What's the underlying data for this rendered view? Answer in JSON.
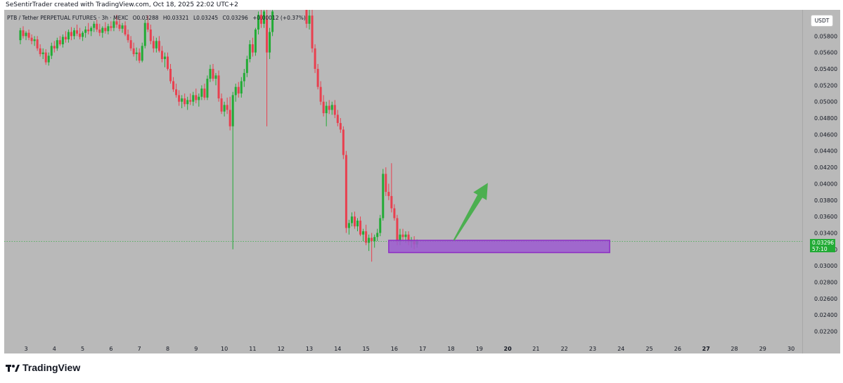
{
  "header": {
    "credit": "SeSentirTrader created with TradingView.com, Oct 18, 2025 22:02 UTC+2"
  },
  "legend": {
    "symbol": "PTB / Tether PERPETUAL FUTURES · 3h · MEXC",
    "open": "O0.03288",
    "high": "H0.03321",
    "low": "L0.03245",
    "close": "C0.03296",
    "change": "+0.00012 (+0.37%)"
  },
  "currency_label": "USDT",
  "last_price": {
    "price": "0.03296",
    "countdown": "57:10",
    "color": "#22ab35"
  },
  "footer": {
    "brand": "TradingView"
  },
  "colors": {
    "up": "#22ab35",
    "down": "#e8404f",
    "zone_fill": "#9b59d0",
    "zone_border": "#8e2fc4",
    "arrow": "#4caf50",
    "background": "#b9b9b9"
  },
  "chart_data": {
    "type": "candlestick",
    "symbol": "PTB/USDT",
    "timeframe": "3h",
    "y_ticks": [
      "0.05800",
      "0.05600",
      "0.05400",
      "0.05200",
      "0.05000",
      "0.04800",
      "0.04600",
      "0.04400",
      "0.04200",
      "0.04000",
      "0.03800",
      "0.03600",
      "0.03400",
      "0.03200",
      "0.03000",
      "0.02800",
      "0.02600",
      "0.02400",
      "0.02200"
    ],
    "x_ticks": [
      "3",
      "4",
      "5",
      "6",
      "7",
      "8",
      "9",
      "10",
      "11",
      "12",
      "13",
      "14",
      "15",
      "16",
      "17",
      "18",
      "19",
      "20",
      "21",
      "22",
      "23",
      "24",
      "25",
      "26",
      "27",
      "28",
      "29",
      "30"
    ],
    "ylim": [
      0.0205,
      0.0612
    ],
    "last_close": 0.03296,
    "support_zone": {
      "low": 0.0316,
      "high": 0.0331,
      "from_day": 15.8,
      "to_day": 23.6
    },
    "projection_arrow": {
      "from": [
        18.1,
        0.0331
      ],
      "to": [
        19.3,
        0.0401
      ]
    },
    "candles": [
      [
        2.8,
        0.0575,
        0.059,
        0.057,
        0.0587
      ],
      [
        2.9,
        0.0587,
        0.0592,
        0.0577,
        0.058
      ],
      [
        3.0,
        0.058,
        0.0586,
        0.0575,
        0.0584
      ],
      [
        3.1,
        0.0584,
        0.0588,
        0.0575,
        0.0578
      ],
      [
        3.2,
        0.0578,
        0.0582,
        0.057,
        0.0574
      ],
      [
        3.3,
        0.0574,
        0.058,
        0.0568,
        0.0576
      ],
      [
        3.4,
        0.0576,
        0.058,
        0.0562,
        0.0565
      ],
      [
        3.5,
        0.0565,
        0.057,
        0.0555,
        0.0558
      ],
      [
        3.6,
        0.0558,
        0.0565,
        0.0552,
        0.056
      ],
      [
        3.7,
        0.056,
        0.0564,
        0.0545,
        0.0548
      ],
      [
        3.8,
        0.0548,
        0.056,
        0.0544,
        0.0556
      ],
      [
        3.9,
        0.0556,
        0.0572,
        0.0552,
        0.0568
      ],
      [
        4.0,
        0.0568,
        0.0574,
        0.056,
        0.0565
      ],
      [
        4.1,
        0.0565,
        0.0578,
        0.0562,
        0.0575
      ],
      [
        4.2,
        0.0575,
        0.058,
        0.0568,
        0.057
      ],
      [
        4.3,
        0.057,
        0.0582,
        0.0566,
        0.0579
      ],
      [
        4.4,
        0.0579,
        0.0586,
        0.0572,
        0.0576
      ],
      [
        4.5,
        0.0576,
        0.0588,
        0.0572,
        0.0585
      ],
      [
        4.6,
        0.0585,
        0.0591,
        0.0575,
        0.058
      ],
      [
        4.7,
        0.058,
        0.059,
        0.0576,
        0.0587
      ],
      [
        4.8,
        0.0587,
        0.0594,
        0.058,
        0.0583
      ],
      [
        4.9,
        0.0583,
        0.059,
        0.0576,
        0.0579
      ],
      [
        5.0,
        0.0579,
        0.0586,
        0.0574,
        0.0584
      ],
      [
        5.1,
        0.0584,
        0.0592,
        0.0578,
        0.0588
      ],
      [
        5.2,
        0.0588,
        0.0596,
        0.0582,
        0.0586
      ],
      [
        5.3,
        0.0586,
        0.0592,
        0.058,
        0.059
      ],
      [
        5.4,
        0.059,
        0.0598,
        0.0585,
        0.0595
      ],
      [
        5.5,
        0.0595,
        0.06,
        0.0585,
        0.0588
      ],
      [
        5.6,
        0.0588,
        0.0595,
        0.058,
        0.0584
      ],
      [
        5.7,
        0.0584,
        0.0592,
        0.0578,
        0.059
      ],
      [
        5.8,
        0.059,
        0.0597,
        0.0583,
        0.0586
      ],
      [
        5.9,
        0.0586,
        0.0595,
        0.0582,
        0.0592
      ],
      [
        6.0,
        0.0592,
        0.0598,
        0.0586,
        0.059
      ],
      [
        6.1,
        0.059,
        0.0602,
        0.0586,
        0.0598
      ],
      [
        6.2,
        0.0598,
        0.0606,
        0.059,
        0.0594
      ],
      [
        6.3,
        0.0594,
        0.06,
        0.0586,
        0.0589
      ],
      [
        6.4,
        0.0589,
        0.0596,
        0.0584,
        0.0593
      ],
      [
        6.5,
        0.0593,
        0.0598,
        0.058,
        0.0582
      ],
      [
        6.6,
        0.0582,
        0.0588,
        0.0572,
        0.0575
      ],
      [
        6.7,
        0.0575,
        0.058,
        0.0562,
        0.0565
      ],
      [
        6.8,
        0.0565,
        0.0572,
        0.0555,
        0.0558
      ],
      [
        6.9,
        0.0558,
        0.0566,
        0.055,
        0.056
      ],
      [
        7.0,
        0.056,
        0.0565,
        0.0547,
        0.055
      ],
      [
        7.1,
        0.055,
        0.0572,
        0.0548,
        0.0568
      ],
      [
        7.2,
        0.0568,
        0.06,
        0.0565,
        0.0596
      ],
      [
        7.3,
        0.0596,
        0.0605,
        0.0585,
        0.0588
      ],
      [
        7.4,
        0.0588,
        0.0594,
        0.057,
        0.0574
      ],
      [
        7.5,
        0.0574,
        0.058,
        0.056,
        0.0565
      ],
      [
        7.6,
        0.0565,
        0.0578,
        0.056,
        0.0574
      ],
      [
        7.7,
        0.0574,
        0.058,
        0.056,
        0.0562
      ],
      [
        7.8,
        0.0562,
        0.0568,
        0.0548,
        0.0552
      ],
      [
        7.9,
        0.0552,
        0.056,
        0.0542,
        0.0555
      ],
      [
        8.0,
        0.0555,
        0.056,
        0.0538,
        0.054
      ],
      [
        8.1,
        0.054,
        0.0546,
        0.0522,
        0.0525
      ],
      [
        8.2,
        0.0525,
        0.053,
        0.0512,
        0.0515
      ],
      [
        8.3,
        0.0515,
        0.0522,
        0.0505,
        0.0508
      ],
      [
        8.4,
        0.0508,
        0.0514,
        0.0495,
        0.05
      ],
      [
        8.5,
        0.05,
        0.0508,
        0.0492,
        0.0504
      ],
      [
        8.6,
        0.0504,
        0.051,
        0.0494,
        0.0497
      ],
      [
        8.7,
        0.0497,
        0.0506,
        0.049,
        0.0502
      ],
      [
        8.8,
        0.0502,
        0.051,
        0.0496,
        0.05
      ],
      [
        8.9,
        0.05,
        0.0512,
        0.0495,
        0.0508
      ],
      [
        9.0,
        0.0508,
        0.0516,
        0.0498,
        0.0502
      ],
      [
        9.1,
        0.0502,
        0.051,
        0.0494,
        0.0506
      ],
      [
        9.2,
        0.0506,
        0.052,
        0.0502,
        0.0516
      ],
      [
        9.3,
        0.0516,
        0.0522,
        0.0502,
        0.0505
      ],
      [
        9.4,
        0.0505,
        0.0532,
        0.0502,
        0.0528
      ],
      [
        9.5,
        0.0528,
        0.0545,
        0.0524,
        0.054
      ],
      [
        9.6,
        0.054,
        0.0546,
        0.0525,
        0.0528
      ],
      [
        9.7,
        0.0528,
        0.0535,
        0.052,
        0.0532
      ],
      [
        9.8,
        0.0532,
        0.0538,
        0.05,
        0.0504
      ],
      [
        9.9,
        0.0504,
        0.051,
        0.0485,
        0.0488
      ],
      [
        10.0,
        0.0488,
        0.05,
        0.0482,
        0.0496
      ],
      [
        10.1,
        0.0496,
        0.0505,
        0.0485,
        0.049
      ],
      [
        10.2,
        0.049,
        0.0506,
        0.0465,
        0.047
      ],
      [
        10.3,
        0.047,
        0.0512,
        0.032,
        0.0508
      ],
      [
        10.4,
        0.0508,
        0.0522,
        0.05,
        0.0518
      ],
      [
        10.5,
        0.0518,
        0.0524,
        0.0505,
        0.051
      ],
      [
        10.6,
        0.051,
        0.053,
        0.0505,
        0.0525
      ],
      [
        10.7,
        0.0525,
        0.054,
        0.0518,
        0.0535
      ],
      [
        10.8,
        0.0535,
        0.0556,
        0.053,
        0.0552
      ],
      [
        10.9,
        0.0552,
        0.0575,
        0.0548,
        0.057
      ],
      [
        11.0,
        0.057,
        0.0578,
        0.0555,
        0.056
      ],
      [
        11.1,
        0.056,
        0.059,
        0.0556,
        0.0588
      ],
      [
        11.2,
        0.0588,
        0.061,
        0.0582,
        0.0606
      ],
      [
        11.3,
        0.0606,
        0.0612,
        0.059,
        0.0595
      ],
      [
        11.4,
        0.0595,
        0.0612,
        0.059,
        0.061
      ],
      [
        11.5,
        0.06,
        0.0612,
        0.047,
        0.056
      ],
      [
        11.6,
        0.056,
        0.059,
        0.0552,
        0.0585
      ],
      [
        11.7,
        0.0585,
        0.0612,
        0.058,
        0.061
      ],
      [
        12.9,
        0.0612,
        0.0612,
        0.059,
        0.0595
      ],
      [
        13.0,
        0.0595,
        0.0612,
        0.0588,
        0.0605
      ],
      [
        13.1,
        0.0605,
        0.0612,
        0.056,
        0.0565
      ],
      [
        13.2,
        0.0565,
        0.057,
        0.0535,
        0.054
      ],
      [
        13.3,
        0.054,
        0.0546,
        0.0515,
        0.0518
      ],
      [
        13.4,
        0.0518,
        0.0525,
        0.0496,
        0.05
      ],
      [
        13.5,
        0.05,
        0.0508,
        0.0482,
        0.0486
      ],
      [
        13.6,
        0.0486,
        0.05,
        0.047,
        0.0495
      ],
      [
        13.7,
        0.0495,
        0.0502,
        0.0485,
        0.049
      ],
      [
        13.8,
        0.049,
        0.05,
        0.0484,
        0.0496
      ],
      [
        13.9,
        0.0496,
        0.0502,
        0.048,
        0.0484
      ],
      [
        14.0,
        0.0484,
        0.049,
        0.047,
        0.0474
      ],
      [
        14.1,
        0.0474,
        0.048,
        0.0462,
        0.0466
      ],
      [
        14.2,
        0.0466,
        0.047,
        0.043,
        0.0435
      ],
      [
        14.3,
        0.0435,
        0.044,
        0.034,
        0.0346
      ],
      [
        14.4,
        0.0346,
        0.0356,
        0.0338,
        0.0352
      ],
      [
        14.5,
        0.0352,
        0.0365,
        0.0348,
        0.036
      ],
      [
        14.6,
        0.036,
        0.0366,
        0.0345,
        0.0348
      ],
      [
        14.7,
        0.0348,
        0.0358,
        0.0342,
        0.0355
      ],
      [
        14.8,
        0.0355,
        0.036,
        0.0336,
        0.0338
      ],
      [
        14.9,
        0.0338,
        0.0345,
        0.033,
        0.0342
      ],
      [
        15.0,
        0.0342,
        0.035,
        0.0325,
        0.0328
      ],
      [
        15.1,
        0.0328,
        0.0338,
        0.0318,
        0.0334
      ],
      [
        15.2,
        0.0334,
        0.034,
        0.0305,
        0.033
      ],
      [
        15.3,
        0.033,
        0.0338,
        0.0322,
        0.0335
      ],
      [
        15.4,
        0.0335,
        0.0345,
        0.033,
        0.034
      ],
      [
        15.5,
        0.034,
        0.0362,
        0.0336,
        0.0358
      ],
      [
        15.6,
        0.0358,
        0.0418,
        0.0355,
        0.0412
      ],
      [
        15.7,
        0.0412,
        0.042,
        0.0385,
        0.039
      ],
      [
        15.8,
        0.039,
        0.04,
        0.038,
        0.0385
      ],
      [
        15.9,
        0.0385,
        0.0425,
        0.0365,
        0.037
      ],
      [
        16.0,
        0.037,
        0.0375,
        0.0355,
        0.0358
      ],
      [
        16.1,
        0.0358,
        0.0362,
        0.0325,
        0.033
      ],
      [
        16.2,
        0.033,
        0.0345,
        0.0325,
        0.0338
      ],
      [
        16.3,
        0.0338,
        0.0345,
        0.033,
        0.0335
      ],
      [
        16.4,
        0.0335,
        0.0342,
        0.0328,
        0.0338
      ],
      [
        16.5,
        0.0338,
        0.0342,
        0.0325,
        0.0329
      ],
      [
        16.6,
        0.0329,
        0.0335,
        0.0322,
        0.0331
      ],
      [
        16.7,
        0.0331,
        0.0336,
        0.032,
        0.0326
      ],
      [
        16.8,
        0.0326,
        0.0332,
        0.0322,
        0.033
      ]
    ]
  }
}
